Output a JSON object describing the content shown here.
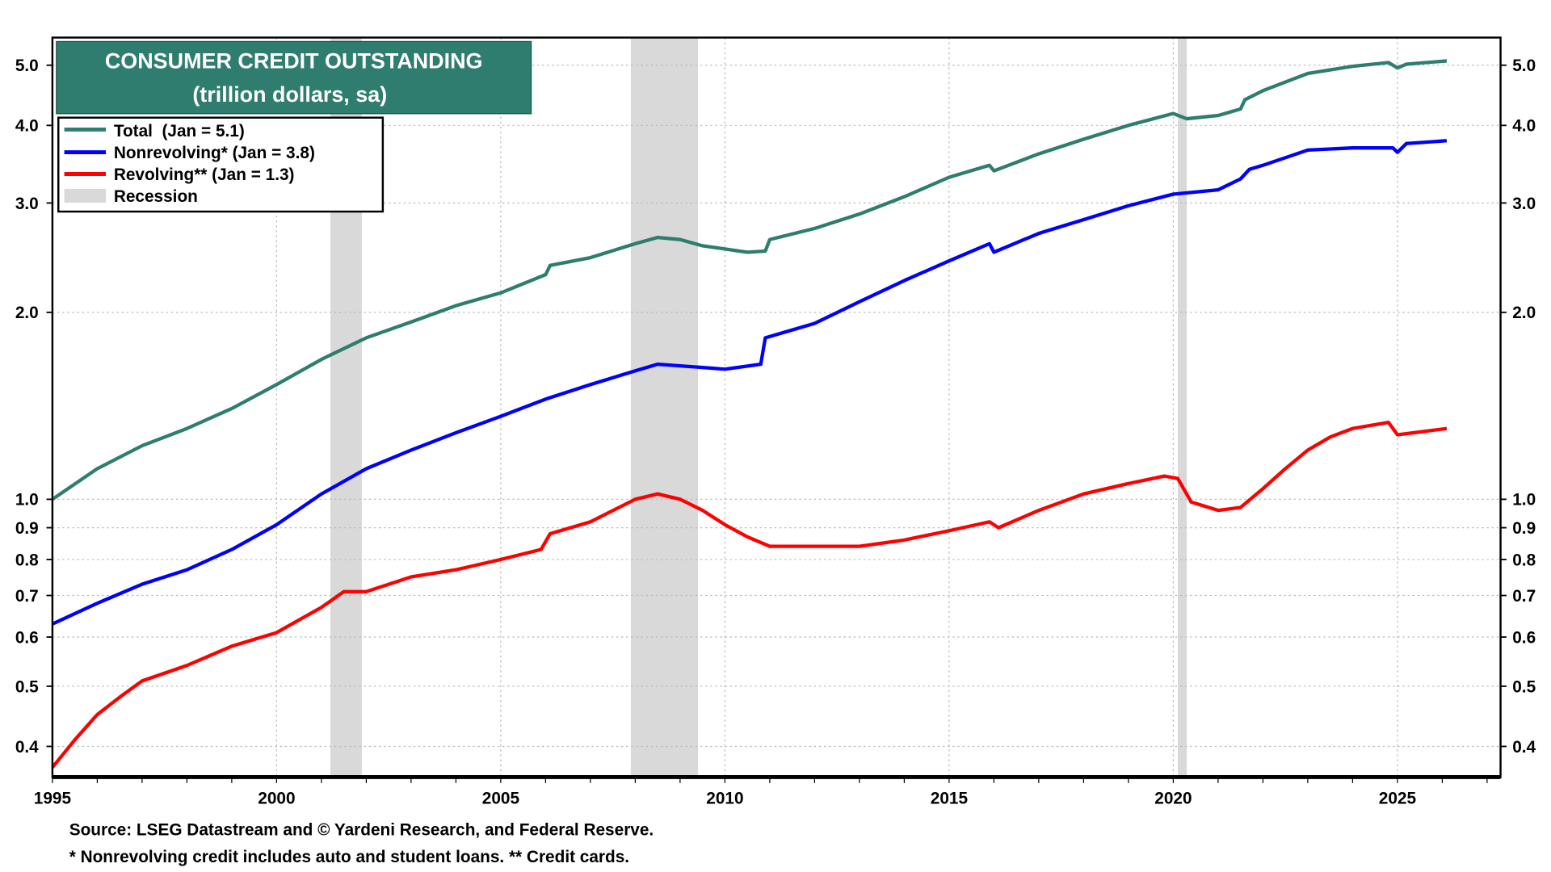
{
  "chart_data": {
    "type": "line",
    "title": "CONSUMER CREDIT OUTSTANDING",
    "subtitle": "(trillion dollars, sa)",
    "xlabel": "",
    "ylabel": "",
    "y_scale": "log",
    "xlim": [
      1995,
      2027.3
    ],
    "ylim": [
      0.357,
      5.54
    ],
    "grid": true,
    "legend_placement": "top-left",
    "x_ticks": [
      "1995",
      "2000",
      "2005",
      "2010",
      "2015",
      "2020",
      "2025"
    ],
    "y_ticks": [
      "0.4",
      "0.5",
      "0.6",
      "0.7",
      "0.8",
      "0.9",
      "1.0",
      "2.0",
      "3.0",
      "4.0",
      "5.0"
    ],
    "recession_label": "Recession",
    "recessions": [
      [
        2001.2,
        2001.9
      ],
      [
        2007.9,
        2009.4
      ],
      [
        2020.1,
        2020.3
      ]
    ],
    "recession_color": "#d9d9d9",
    "series": [
      {
        "name": "Total  (Jan = 5.1)",
        "color": "#2e7d6e",
        "x": [
          1995,
          1996,
          1997,
          1998,
          1999,
          2000,
          2001,
          2002,
          2003,
          2004,
          2005,
          2006.0,
          2006.1,
          2007,
          2008,
          2008.5,
          2009,
          2009.5,
          2010,
          2010.5,
          2010.9,
          2011.0,
          2012,
          2013,
          2014,
          2015,
          2015.9,
          2016.0,
          2017,
          2018,
          2019,
          2020,
          2020.3,
          2021,
          2021.5,
          2021.6,
          2022,
          2023,
          2024,
          2024.8,
          2025.0,
          2025.2,
          2026.1
        ],
        "y": [
          1.0,
          1.12,
          1.22,
          1.3,
          1.4,
          1.53,
          1.68,
          1.82,
          1.93,
          2.05,
          2.15,
          2.3,
          2.38,
          2.45,
          2.58,
          2.64,
          2.62,
          2.56,
          2.53,
          2.5,
          2.51,
          2.62,
          2.73,
          2.88,
          3.07,
          3.3,
          3.45,
          3.38,
          3.6,
          3.8,
          4.0,
          4.18,
          4.1,
          4.15,
          4.25,
          4.4,
          4.55,
          4.85,
          4.98,
          5.05,
          4.95,
          5.02,
          5.08
        ]
      },
      {
        "name": "Nonrevolving* (Jan = 3.8)",
        "color": "#0000ff",
        "x": [
          1995,
          1996,
          1997,
          1998,
          1999,
          2000,
          2001,
          2002,
          2003,
          2004,
          2005,
          2006,
          2007,
          2008,
          2008.5,
          2009.5,
          2010,
          2010.8,
          2010.9,
          2012,
          2013,
          2014,
          2015,
          2015.9,
          2016.0,
          2017,
          2018,
          2019,
          2020,
          2021,
          2021.5,
          2021.7,
          2022,
          2023,
          2024,
          2024.9,
          2025.0,
          2025.2,
          2026.1
        ],
        "y": [
          0.63,
          0.68,
          0.73,
          0.77,
          0.83,
          0.91,
          1.02,
          1.12,
          1.2,
          1.28,
          1.36,
          1.45,
          1.53,
          1.61,
          1.65,
          1.63,
          1.62,
          1.65,
          1.82,
          1.92,
          2.08,
          2.25,
          2.42,
          2.58,
          2.5,
          2.68,
          2.82,
          2.97,
          3.1,
          3.15,
          3.28,
          3.4,
          3.45,
          3.65,
          3.68,
          3.68,
          3.62,
          3.74,
          3.78
        ]
      },
      {
        "name": "Revolving** (Jan = 1.3)",
        "color": "#ff0000",
        "x": [
          1995,
          1995.5,
          1996,
          1996.5,
          1997,
          1998,
          1999,
          2000,
          2001,
          2001.5,
          2002,
          2003,
          2004,
          2005,
          2005.9,
          2006.1,
          2007,
          2008,
          2008.5,
          2009,
          2009.5,
          2010,
          2010.5,
          2011,
          2012,
          2013,
          2014,
          2015,
          2015.9,
          2016.1,
          2017,
          2018,
          2019,
          2019.8,
          2020.1,
          2020.4,
          2021,
          2021.5,
          2022,
          2022.5,
          2023,
          2023.5,
          2024,
          2024.8,
          2025.0,
          2026.1
        ],
        "y": [
          0.37,
          0.41,
          0.45,
          0.48,
          0.51,
          0.54,
          0.58,
          0.61,
          0.67,
          0.71,
          0.71,
          0.75,
          0.77,
          0.8,
          0.83,
          0.88,
          0.92,
          1.0,
          1.02,
          1.0,
          0.96,
          0.91,
          0.87,
          0.84,
          0.84,
          0.84,
          0.86,
          0.89,
          0.92,
          0.9,
          0.96,
          1.02,
          1.06,
          1.09,
          1.08,
          0.99,
          0.96,
          0.97,
          1.04,
          1.12,
          1.2,
          1.26,
          1.3,
          1.33,
          1.27,
          1.3
        ]
      }
    ],
    "footnotes": [
      "Source: LSEG Datastream and © Yardeni Research, and Federal Reserve.",
      "* Nonrevolving credit includes auto and student loans. ** Credit cards."
    ]
  }
}
